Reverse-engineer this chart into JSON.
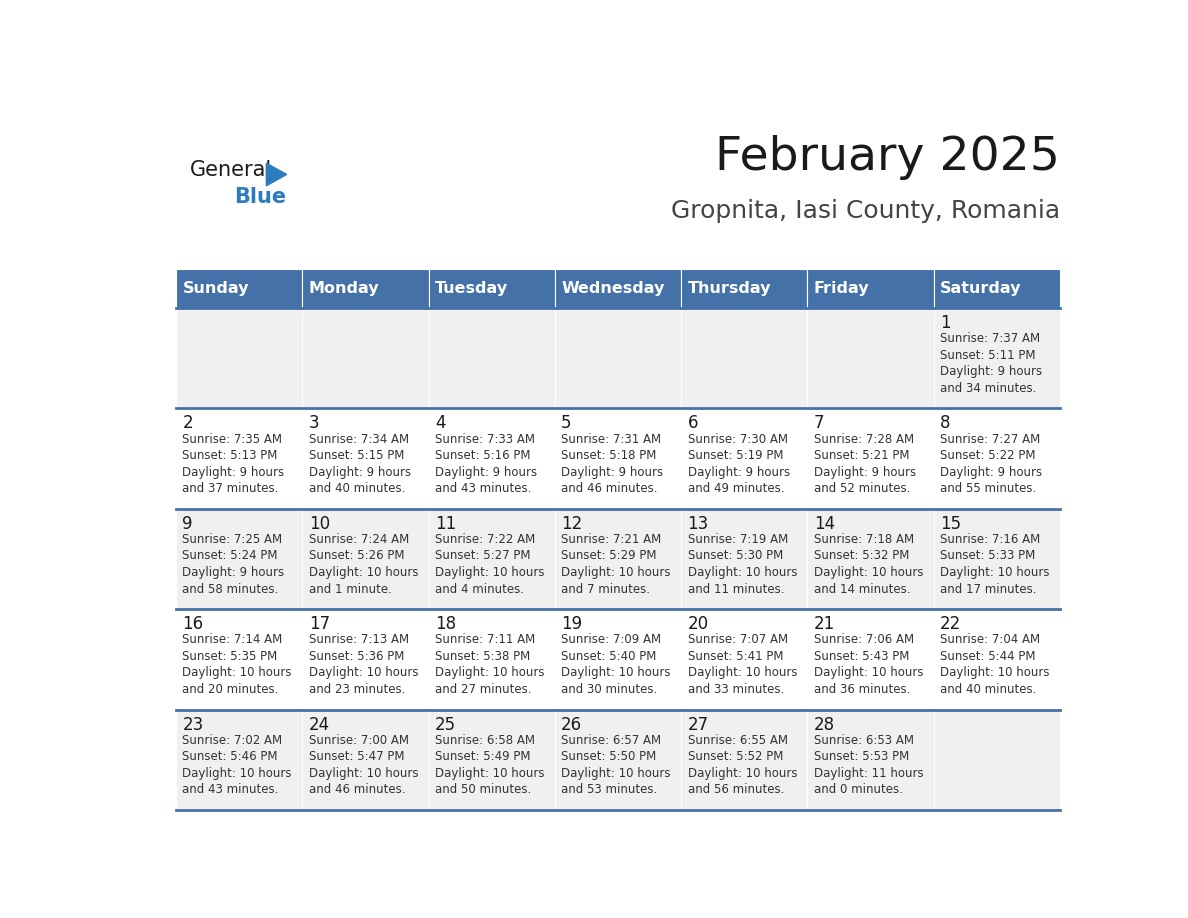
{
  "title": "February 2025",
  "subtitle": "Gropnita, Iasi County, Romania",
  "days_of_week": [
    "Sunday",
    "Monday",
    "Tuesday",
    "Wednesday",
    "Thursday",
    "Friday",
    "Saturday"
  ],
  "header_bg": "#4472a8",
  "header_text": "#ffffff",
  "row_bg_even": "#f0f0f0",
  "row_bg_odd": "#ffffff",
  "cell_text_color": "#333333",
  "day_num_color": "#1a1a1a",
  "separator_color": "#4472a8",
  "title_color": "#1a1a1a",
  "subtitle_color": "#444444",
  "logo_general_color": "#1a1a1a",
  "logo_blue_color": "#2d7bbf",
  "calendar_data": [
    [
      null,
      null,
      null,
      null,
      null,
      null,
      {
        "day": 1,
        "sunrise": "7:37 AM",
        "sunset": "5:11 PM",
        "daylight": "9 hours",
        "daylight2": "and 34 minutes."
      }
    ],
    [
      {
        "day": 2,
        "sunrise": "7:35 AM",
        "sunset": "5:13 PM",
        "daylight": "9 hours",
        "daylight2": "and 37 minutes."
      },
      {
        "day": 3,
        "sunrise": "7:34 AM",
        "sunset": "5:15 PM",
        "daylight": "9 hours",
        "daylight2": "and 40 minutes."
      },
      {
        "day": 4,
        "sunrise": "7:33 AM",
        "sunset": "5:16 PM",
        "daylight": "9 hours",
        "daylight2": "and 43 minutes."
      },
      {
        "day": 5,
        "sunrise": "7:31 AM",
        "sunset": "5:18 PM",
        "daylight": "9 hours",
        "daylight2": "and 46 minutes."
      },
      {
        "day": 6,
        "sunrise": "7:30 AM",
        "sunset": "5:19 PM",
        "daylight": "9 hours",
        "daylight2": "and 49 minutes."
      },
      {
        "day": 7,
        "sunrise": "7:28 AM",
        "sunset": "5:21 PM",
        "daylight": "9 hours",
        "daylight2": "and 52 minutes."
      },
      {
        "day": 8,
        "sunrise": "7:27 AM",
        "sunset": "5:22 PM",
        "daylight": "9 hours",
        "daylight2": "and 55 minutes."
      }
    ],
    [
      {
        "day": 9,
        "sunrise": "7:25 AM",
        "sunset": "5:24 PM",
        "daylight": "9 hours",
        "daylight2": "and 58 minutes."
      },
      {
        "day": 10,
        "sunrise": "7:24 AM",
        "sunset": "5:26 PM",
        "daylight": "10 hours",
        "daylight2": "and 1 minute."
      },
      {
        "day": 11,
        "sunrise": "7:22 AM",
        "sunset": "5:27 PM",
        "daylight": "10 hours",
        "daylight2": "and 4 minutes."
      },
      {
        "day": 12,
        "sunrise": "7:21 AM",
        "sunset": "5:29 PM",
        "daylight": "10 hours",
        "daylight2": "and 7 minutes."
      },
      {
        "day": 13,
        "sunrise": "7:19 AM",
        "sunset": "5:30 PM",
        "daylight": "10 hours",
        "daylight2": "and 11 minutes."
      },
      {
        "day": 14,
        "sunrise": "7:18 AM",
        "sunset": "5:32 PM",
        "daylight": "10 hours",
        "daylight2": "and 14 minutes."
      },
      {
        "day": 15,
        "sunrise": "7:16 AM",
        "sunset": "5:33 PM",
        "daylight": "10 hours",
        "daylight2": "and 17 minutes."
      }
    ],
    [
      {
        "day": 16,
        "sunrise": "7:14 AM",
        "sunset": "5:35 PM",
        "daylight": "10 hours",
        "daylight2": "and 20 minutes."
      },
      {
        "day": 17,
        "sunrise": "7:13 AM",
        "sunset": "5:36 PM",
        "daylight": "10 hours",
        "daylight2": "and 23 minutes."
      },
      {
        "day": 18,
        "sunrise": "7:11 AM",
        "sunset": "5:38 PM",
        "daylight": "10 hours",
        "daylight2": "and 27 minutes."
      },
      {
        "day": 19,
        "sunrise": "7:09 AM",
        "sunset": "5:40 PM",
        "daylight": "10 hours",
        "daylight2": "and 30 minutes."
      },
      {
        "day": 20,
        "sunrise": "7:07 AM",
        "sunset": "5:41 PM",
        "daylight": "10 hours",
        "daylight2": "and 33 minutes."
      },
      {
        "day": 21,
        "sunrise": "7:06 AM",
        "sunset": "5:43 PM",
        "daylight": "10 hours",
        "daylight2": "and 36 minutes."
      },
      {
        "day": 22,
        "sunrise": "7:04 AM",
        "sunset": "5:44 PM",
        "daylight": "10 hours",
        "daylight2": "and 40 minutes."
      }
    ],
    [
      {
        "day": 23,
        "sunrise": "7:02 AM",
        "sunset": "5:46 PM",
        "daylight": "10 hours",
        "daylight2": "and 43 minutes."
      },
      {
        "day": 24,
        "sunrise": "7:00 AM",
        "sunset": "5:47 PM",
        "daylight": "10 hours",
        "daylight2": "and 46 minutes."
      },
      {
        "day": 25,
        "sunrise": "6:58 AM",
        "sunset": "5:49 PM",
        "daylight": "10 hours",
        "daylight2": "and 50 minutes."
      },
      {
        "day": 26,
        "sunrise": "6:57 AM",
        "sunset": "5:50 PM",
        "daylight": "10 hours",
        "daylight2": "and 53 minutes."
      },
      {
        "day": 27,
        "sunrise": "6:55 AM",
        "sunset": "5:52 PM",
        "daylight": "10 hours",
        "daylight2": "and 56 minutes."
      },
      {
        "day": 28,
        "sunrise": "6:53 AM",
        "sunset": "5:53 PM",
        "daylight": "11 hours",
        "daylight2": "and 0 minutes."
      },
      null
    ]
  ]
}
